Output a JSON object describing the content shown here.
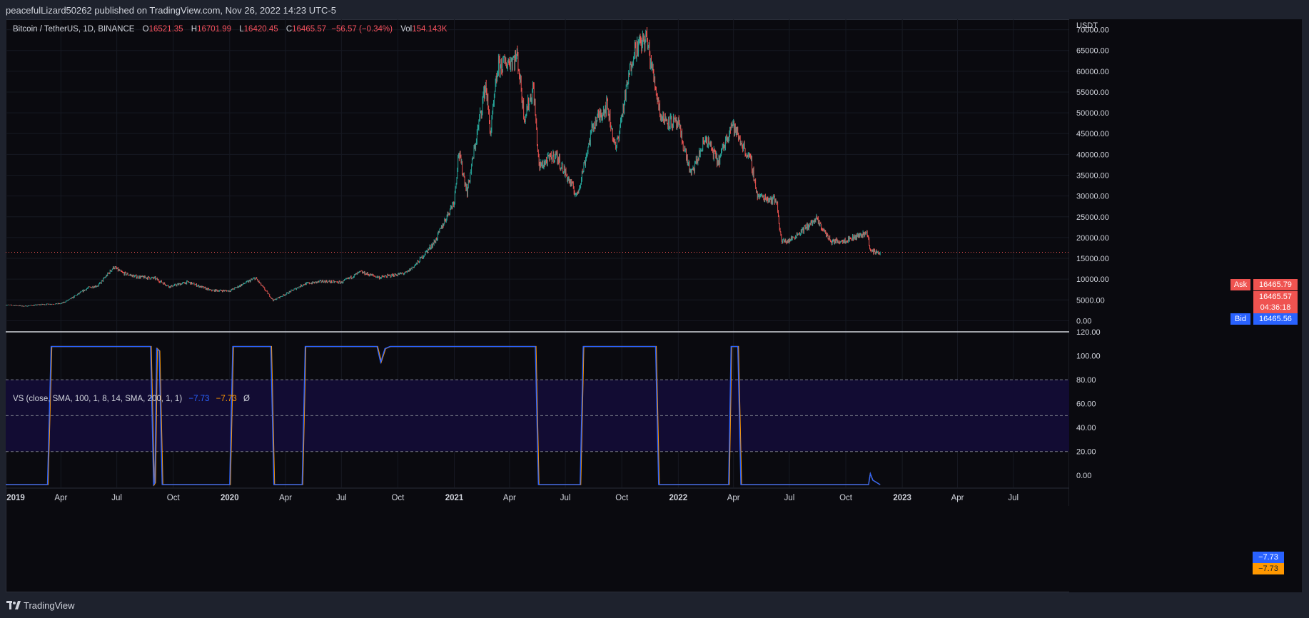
{
  "header": {
    "publish_line": "peacefulLizard50262 published on TradingView.com, Nov 26, 2022 14:23 UTC-5"
  },
  "main_legend": {
    "symbol": "Bitcoin / TetherUS, 1D, BINANCE",
    "open_label": "O",
    "open": "16521.35",
    "high_label": "H",
    "high": "16701.99",
    "low_label": "L",
    "low": "16420.45",
    "close_label": "C",
    "close": "16465.57",
    "change": "−56.57 (−0.34%)",
    "vol_label": "Vol",
    "vol": "154.143K"
  },
  "indicator_legend": {
    "name": "VS (close, SMA, 100, 1, 8, 14, SMA, 200, 1, 1)",
    "value_blue": "−7.73",
    "value_orange": "−7.73",
    "value_empty": "Ø"
  },
  "price_tags": {
    "ask_label": "Ask",
    "ask": "16465.79",
    "last": "16465.57",
    "countdown": "04:36:18",
    "bid_label": "Bid",
    "bid": "16465.56",
    "ind_blue": "−7.73",
    "ind_orange": "−7.73"
  },
  "footer": {
    "brand": "TradingView"
  },
  "colors": {
    "background": "#0a0a0f",
    "up": "#26a69a",
    "down": "#ef5350",
    "ind_blue": "#2962ff",
    "ind_orange": "#ff9800",
    "band": "#120c33",
    "ask": "#ef5350",
    "bid": "#2962ff"
  },
  "chart_data": [
    {
      "type": "candlestick",
      "title": "Bitcoin / TetherUS, 1D, BINANCE",
      "unit": "USDT",
      "ylim": [
        -2500,
        72500
      ],
      "y_ticks": [
        0,
        5000,
        10000,
        15000,
        20000,
        25000,
        30000,
        35000,
        40000,
        45000,
        50000,
        55000,
        60000,
        65000,
        70000
      ],
      "y_tick_labels": [
        "0.00",
        "5000.00",
        "10000.00",
        "15000.00",
        "20000.00",
        "25000.00",
        "30000.00",
        "35000.00",
        "40000.00",
        "45000.00",
        "50000.00",
        "55000.00",
        "60000.00",
        "65000.00",
        "70000.00"
      ],
      "x_ticks": [
        "2019",
        "Apr",
        "Jul",
        "Oct",
        "2020",
        "Apr",
        "Jul",
        "Oct",
        "2021",
        "Apr",
        "Jul",
        "Oct",
        "2022",
        "Apr",
        "Jul",
        "Oct",
        "2023",
        "Apr",
        "Jul"
      ],
      "x_range": [
        "2019-01-01",
        "2023-09-30"
      ],
      "last_price": 16465.57,
      "approx_close_path": [
        [
          "2019-01-01",
          3800
        ],
        [
          "2019-02-01",
          3500
        ],
        [
          "2019-03-01",
          3900
        ],
        [
          "2019-04-01",
          4100
        ],
        [
          "2019-04-15",
          5100
        ],
        [
          "2019-05-15",
          7900
        ],
        [
          "2019-06-01",
          8500
        ],
        [
          "2019-06-26",
          12900
        ],
        [
          "2019-07-10",
          11500
        ],
        [
          "2019-08-01",
          10600
        ],
        [
          "2019-09-01",
          10200
        ],
        [
          "2019-09-25",
          8200
        ],
        [
          "2019-10-25",
          9300
        ],
        [
          "2019-12-01",
          7300
        ],
        [
          "2020-01-01",
          7200
        ],
        [
          "2020-02-12",
          10300
        ],
        [
          "2020-03-12",
          4900
        ],
        [
          "2020-04-01",
          6400
        ],
        [
          "2020-05-01",
          8800
        ],
        [
          "2020-06-01",
          9500
        ],
        [
          "2020-07-01",
          9200
        ],
        [
          "2020-08-01",
          11700
        ],
        [
          "2020-09-01",
          10400
        ],
        [
          "2020-10-15",
          11500
        ],
        [
          "2020-11-01",
          13800
        ],
        [
          "2020-12-01",
          19200
        ],
        [
          "2021-01-01",
          29000
        ],
        [
          "2021-01-08",
          40500
        ],
        [
          "2021-01-22",
          31000
        ],
        [
          "2021-02-21",
          57000
        ],
        [
          "2021-03-01",
          45000
        ],
        [
          "2021-03-13",
          61000
        ],
        [
          "2021-04-14",
          63500
        ],
        [
          "2021-04-25",
          49000
        ],
        [
          "2021-05-10",
          56000
        ],
        [
          "2021-05-19",
          37000
        ],
        [
          "2021-06-15",
          40000
        ],
        [
          "2021-07-20",
          30000
        ],
        [
          "2021-08-15",
          47000
        ],
        [
          "2021-09-07",
          52000
        ],
        [
          "2021-09-21",
          41000
        ],
        [
          "2021-10-20",
          65000
        ],
        [
          "2021-11-10",
          68000
        ],
        [
          "2021-12-04",
          49000
        ],
        [
          "2022-01-01",
          47000
        ],
        [
          "2022-01-22",
          35000
        ],
        [
          "2022-02-15",
          44000
        ],
        [
          "2022-03-07",
          38000
        ],
        [
          "2022-03-29",
          47500
        ],
        [
          "2022-04-30",
          38000
        ],
        [
          "2022-05-10",
          30000
        ],
        [
          "2022-06-10",
          29000
        ],
        [
          "2022-06-18",
          19000
        ],
        [
          "2022-07-01",
          19300
        ],
        [
          "2022-08-14",
          24400
        ],
        [
          "2022-09-07",
          19000
        ],
        [
          "2022-10-01",
          19400
        ],
        [
          "2022-11-05",
          21200
        ],
        [
          "2022-11-10",
          16700
        ],
        [
          "2022-11-26",
          16465
        ]
      ]
    },
    {
      "type": "line",
      "title": "VS (close, SMA, 100, 1, 8, 14, SMA, 200, 1, 1)",
      "ylim": [
        -10,
        120
      ],
      "y_ticks": [
        0,
        20,
        40,
        60,
        80,
        100,
        120
      ],
      "y_tick_labels": [
        "0.00",
        "20.00",
        "40.00",
        "60.00",
        "80.00",
        "100.00",
        "120.00"
      ],
      "levels": [
        20,
        50,
        80
      ],
      "band": [
        20,
        80
      ],
      "series": [
        {
          "values": [
            [
              "2019-01-01",
              -7.7
            ],
            [
              "2019-03-10",
              -7.7
            ],
            [
              "2019-03-16",
              107.7
            ],
            [
              "2019-08-25",
              107.7
            ],
            [
              "2019-08-30",
              -7.7
            ],
            [
              "2019-09-01",
              -6
            ],
            [
              "2019-09-04",
              106
            ],
            [
              "2019-09-08",
              104
            ],
            [
              "2019-09-13",
              -7.7
            ],
            [
              "2020-01-01",
              -7.7
            ],
            [
              "2020-01-06",
              107.7
            ],
            [
              "2020-03-08",
              107.7
            ],
            [
              "2020-03-13",
              -7.7
            ],
            [
              "2020-04-28",
              -7.7
            ],
            [
              "2020-05-03",
              107.7
            ],
            [
              "2020-08-28",
              107.7
            ],
            [
              "2020-09-03",
              94.5
            ],
            [
              "2020-09-10",
              106
            ],
            [
              "2020-09-18",
              107.7
            ],
            [
              "2021-05-13",
              107.7
            ],
            [
              "2021-05-18",
              -7.7
            ],
            [
              "2021-07-25",
              -7.7
            ],
            [
              "2021-07-30",
              107.7
            ],
            [
              "2021-11-25",
              107.7
            ],
            [
              "2021-11-30",
              -7.7
            ],
            [
              "2022-03-24",
              -7.7
            ],
            [
              "2022-03-28",
              107.7
            ],
            [
              "2022-04-08",
              107.7
            ],
            [
              "2022-04-13",
              -7.7
            ],
            [
              "2022-11-07",
              -7.7
            ],
            [
              "2022-11-10",
              1.5
            ],
            [
              "2022-11-14",
              -4
            ],
            [
              "2022-11-26",
              -7.73
            ]
          ]
        },
        {
          "values": [
            [
              "2019-01-01",
              -7.7
            ],
            [
              "2019-03-11",
              -7.7
            ],
            [
              "2019-03-17",
              107.7
            ],
            [
              "2019-08-26",
              107.7
            ],
            [
              "2019-08-31",
              -7.7
            ],
            [
              "2019-09-02",
              -6
            ],
            [
              "2019-09-05",
              106
            ],
            [
              "2019-09-09",
              104
            ],
            [
              "2019-09-14",
              -7.7
            ],
            [
              "2020-01-02",
              -7.7
            ],
            [
              "2020-01-07",
              107.7
            ],
            [
              "2020-03-09",
              107.7
            ],
            [
              "2020-03-14",
              -7.7
            ],
            [
              "2020-04-29",
              -7.7
            ],
            [
              "2020-05-04",
              107.7
            ],
            [
              "2020-08-29",
              107.7
            ],
            [
              "2020-09-04",
              95
            ],
            [
              "2020-09-11",
              106
            ],
            [
              "2020-09-19",
              107.7
            ],
            [
              "2021-05-14",
              107.7
            ],
            [
              "2021-05-19",
              -7.7
            ],
            [
              "2021-07-26",
              -7.7
            ],
            [
              "2021-07-31",
              107.7
            ],
            [
              "2021-11-26",
              107.7
            ],
            [
              "2021-12-01",
              -7.7
            ],
            [
              "2022-03-25",
              -7.7
            ],
            [
              "2022-03-29",
              107.7
            ],
            [
              "2022-04-09",
              107.7
            ],
            [
              "2022-04-14",
              -7.7
            ],
            [
              "2022-11-07",
              -7.7
            ],
            [
              "2022-11-10",
              1.5
            ],
            [
              "2022-11-14",
              -4
            ],
            [
              "2022-11-26",
              -7.73
            ]
          ]
        }
      ]
    }
  ]
}
